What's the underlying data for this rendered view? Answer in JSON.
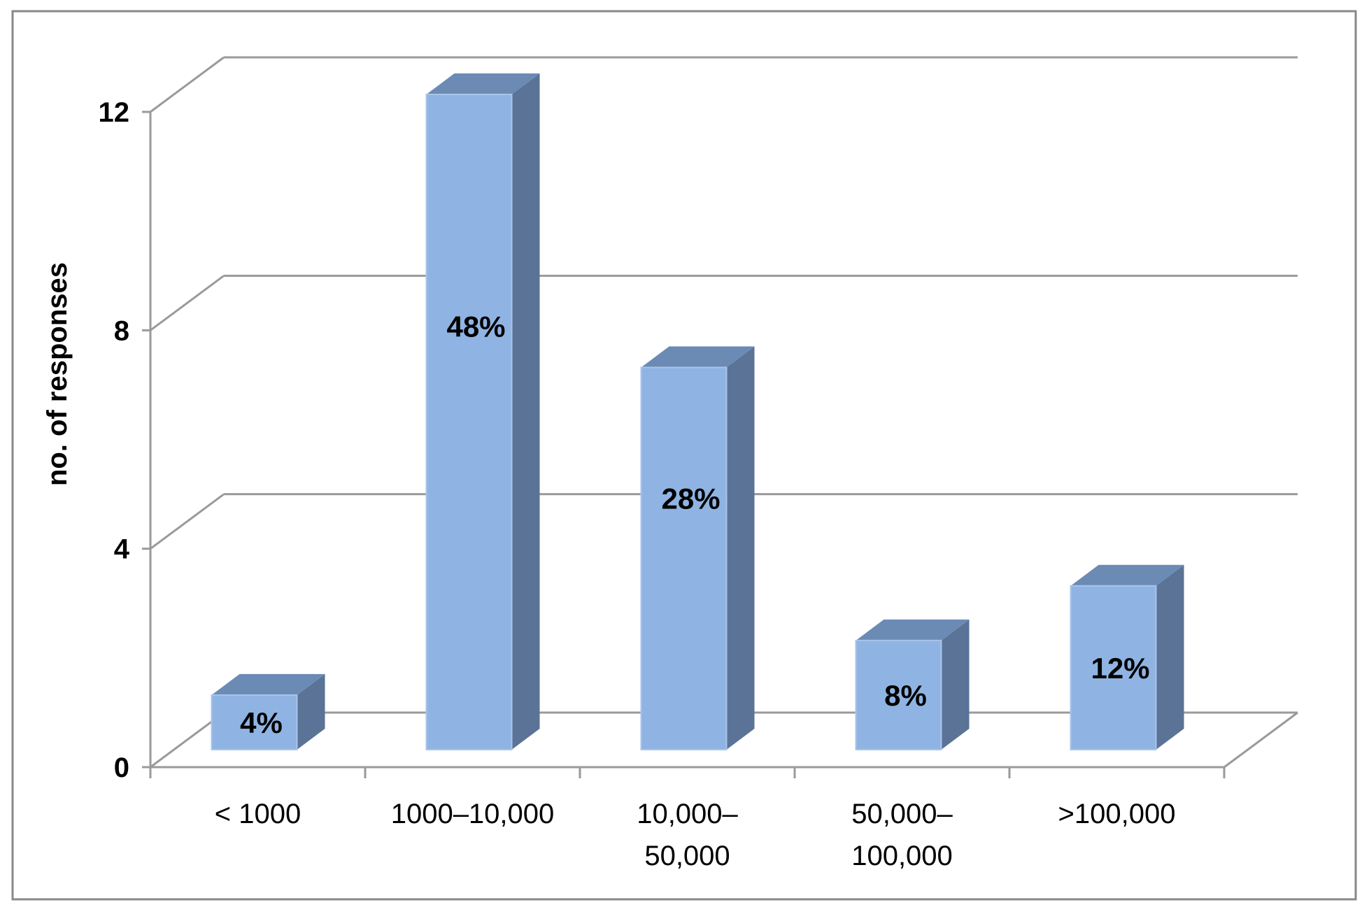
{
  "chart_data": {
    "type": "bar",
    "style": "3d-column",
    "title": "",
    "xlabel": "",
    "ylabel": "no. of responses",
    "ylim": [
      0,
      12
    ],
    "yticks": [
      0,
      4,
      8,
      12
    ],
    "grid": true,
    "legend": "none",
    "categories": [
      [
        "< 1000"
      ],
      [
        "1000–10,000"
      ],
      [
        "10,000–",
        "50,000"
      ],
      [
        "50,000–",
        "100,000"
      ],
      [
        ">100,000"
      ]
    ],
    "values": [
      1,
      12,
      7,
      2,
      3
    ],
    "data_labels": [
      "4%",
      "48%",
      "28%",
      "8%",
      "12%"
    ],
    "colors": {
      "bar_front": "#8fb4e3",
      "bar_top": "#6b8bb5",
      "bar_side": "#5a7396",
      "bar_edge": "#a9c4ea",
      "grid": "#9a9a9a",
      "border": "#888888"
    }
  }
}
